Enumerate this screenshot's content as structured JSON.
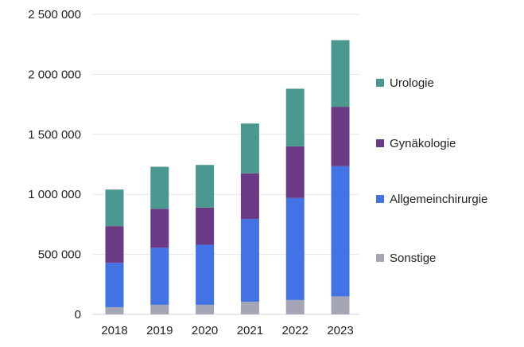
{
  "chart_data": {
    "type": "bar",
    "stacked": true,
    "categories": [
      "2018",
      "2019",
      "2020",
      "2021",
      "2022",
      "2023"
    ],
    "series": [
      {
        "name": "Sonstige",
        "color": "#a5a6b5",
        "values": [
          60000,
          80000,
          80000,
          105000,
          120000,
          150000
        ]
      },
      {
        "name": "Allgemeinchirurgie",
        "color": "#4272e3",
        "values": [
          370000,
          475000,
          500000,
          690000,
          850000,
          1085000
        ]
      },
      {
        "name": "Gynäkologie",
        "color": "#6a3a84",
        "values": [
          305000,
          325000,
          310000,
          380000,
          430000,
          495000
        ]
      },
      {
        "name": "Urologie",
        "color": "#4b9891",
        "values": [
          305000,
          350000,
          355000,
          415000,
          480000,
          555000
        ]
      }
    ],
    "y_ticks": [
      "0",
      "500 000",
      "1 000 000",
      "1 500 000",
      "2 000 000",
      "2 500 000"
    ],
    "ylim": [
      0,
      2500000
    ],
    "grid": "horizontal",
    "legend_position": "right",
    "title": "",
    "xlabel": "",
    "ylabel": ""
  }
}
